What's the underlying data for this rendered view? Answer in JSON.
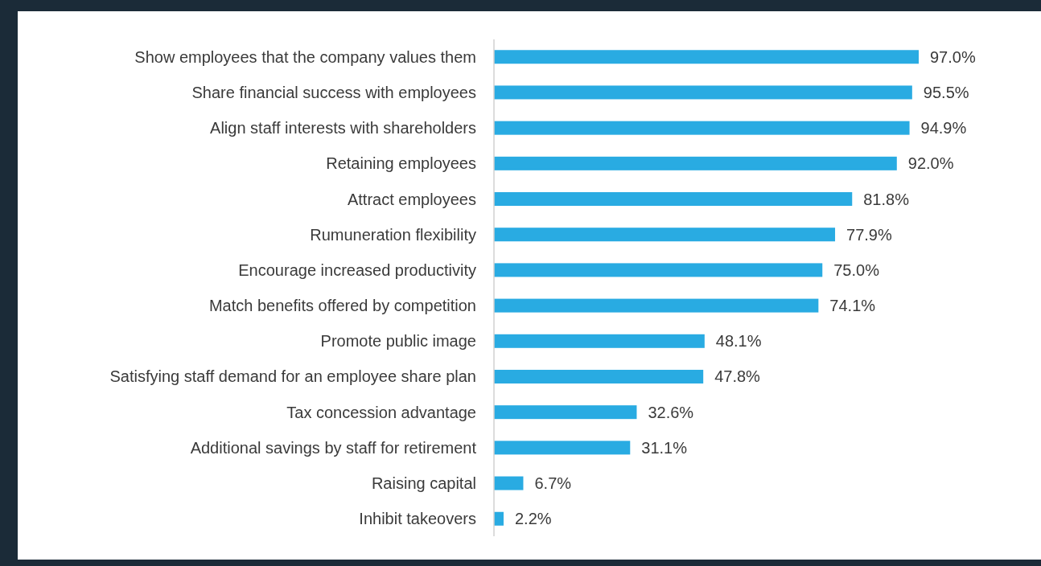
{
  "chart_data": {
    "type": "bar",
    "orientation": "horizontal",
    "categories": [
      "Show employees that the company values them",
      "Share financial success with employees",
      "Align staff interests with shareholders",
      "Retaining employees",
      "Attract employees",
      "Rumuneration flexibility",
      "Encourage increased productivity",
      "Match benefits offered by competition",
      "Promote public image",
      "Satisfying staff demand for an employee share plan",
      "Tax concession advantage",
      "Additional savings by staff for retirement",
      "Raising capital",
      "Inhibit takeovers"
    ],
    "values": [
      97.0,
      95.5,
      94.9,
      92.0,
      81.8,
      77.9,
      75.0,
      74.1,
      48.1,
      47.8,
      32.6,
      31.1,
      6.7,
      2.2
    ],
    "value_labels": [
      "97.0%",
      "95.5%",
      "94.9%",
      "92.0%",
      "81.8%",
      "77.9%",
      "75.0%",
      "74.1%",
      "48.1%",
      "47.8%",
      "32.6%",
      "31.1%",
      "6.7%",
      "2.2%"
    ],
    "color": "#29abe2",
    "tick_labels": "y"
  }
}
